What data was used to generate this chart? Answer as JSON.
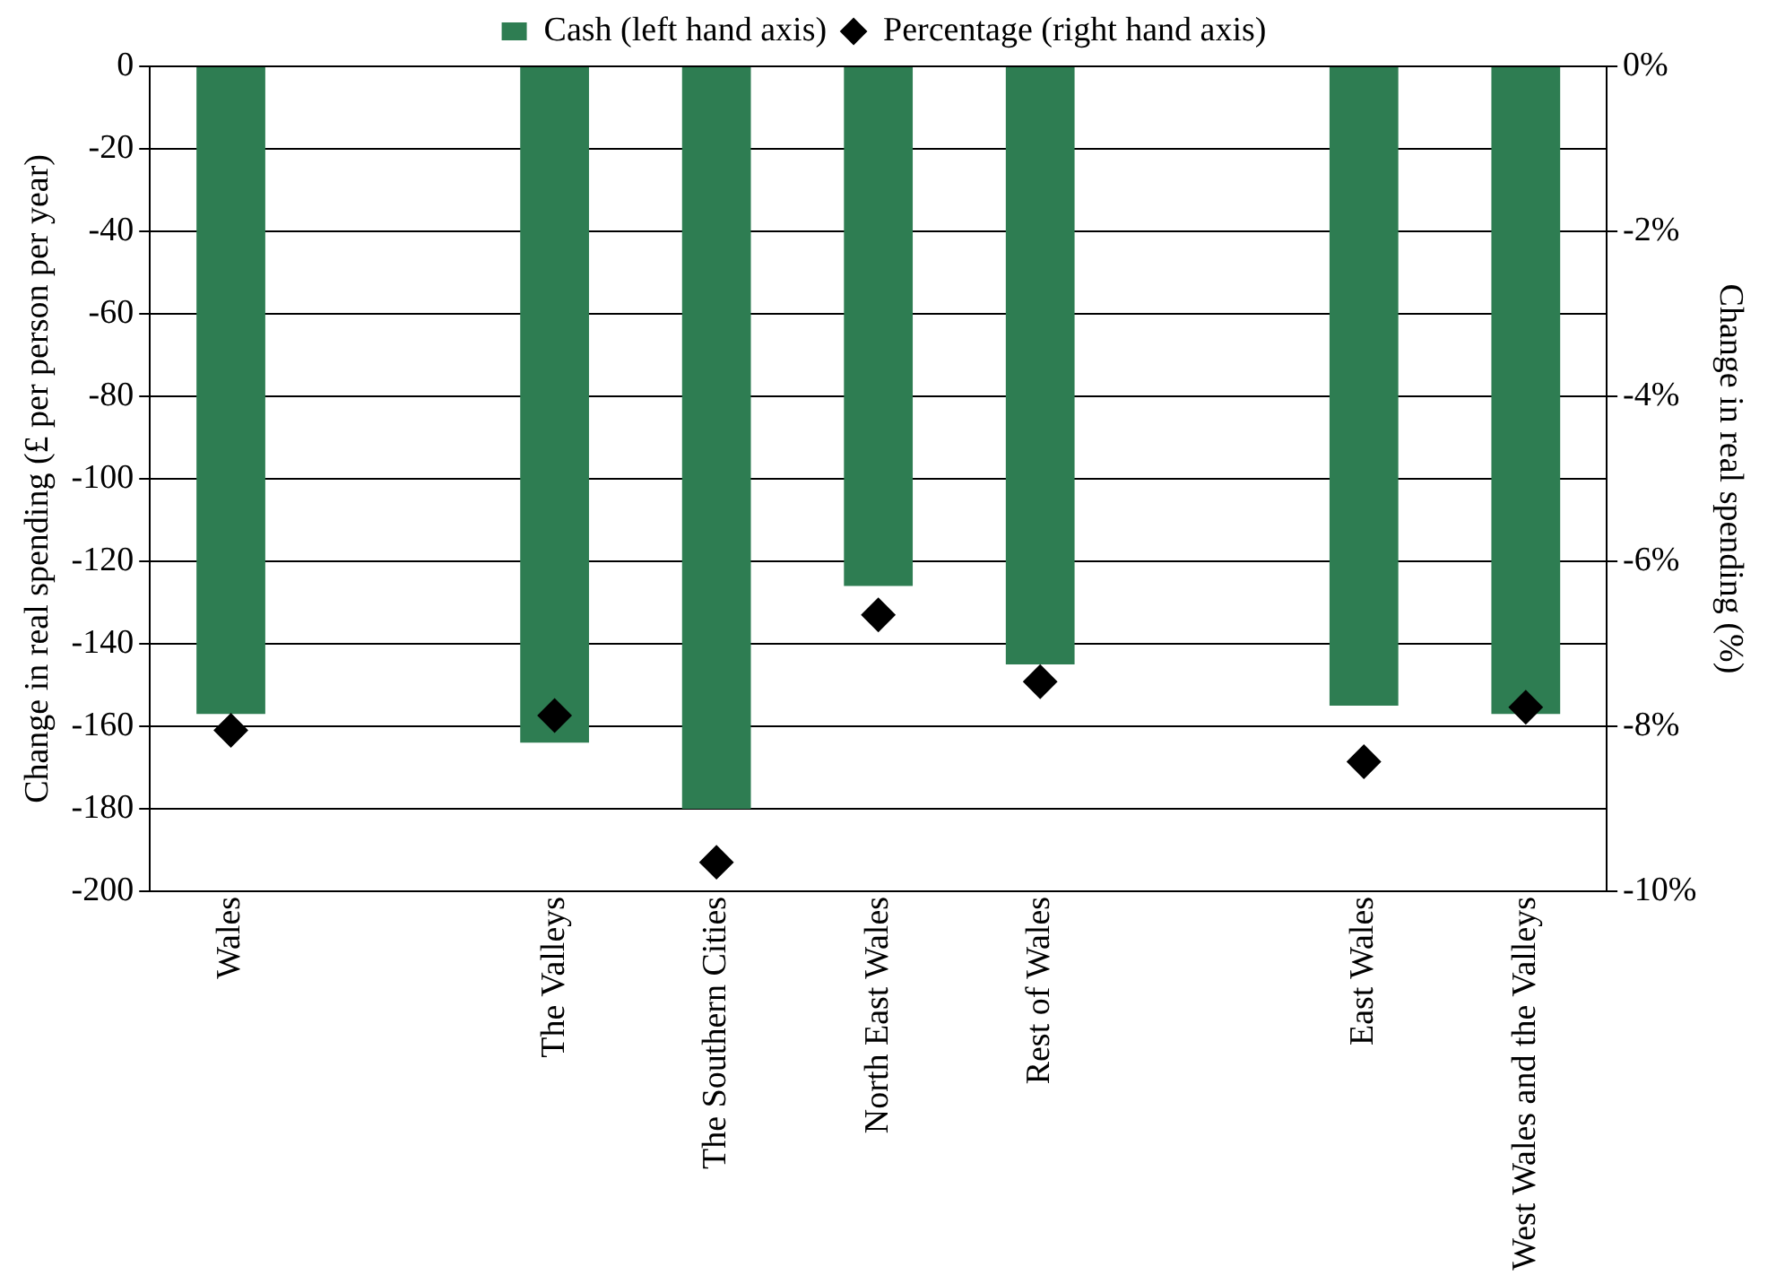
{
  "chart_data": {
    "type": "bar",
    "categories": [
      "Wales",
      null,
      "The Valleys",
      "The Southern Cities",
      "North East Wales",
      "Rest of Wales",
      null,
      "East Wales",
      "West Wales and the Valleys"
    ],
    "ylabel": "Change in real spending (£ per person per year)",
    "y2label": "Change in real spending (%)",
    "series": [
      {
        "name": "Cash (left hand axis)",
        "color": "#2e7d52",
        "values": [
          -157,
          null,
          -164,
          -180,
          -126,
          -145,
          null,
          -155,
          -157
        ]
      },
      {
        "name": "Percentage (right hand axis)",
        "type": "scatter",
        "axis": "y2",
        "color": "#000000",
        "marker": "diamond",
        "values": [
          -8.05,
          null,
          -7.87,
          -9.65,
          -6.65,
          -7.46,
          null,
          -8.43,
          -7.77
        ]
      }
    ],
    "ylim": [
      -200,
      0
    ],
    "yticks": [
      -200,
      -180,
      -160,
      -140,
      -120,
      -100,
      -80,
      -60,
      -40,
      -20,
      0
    ],
    "y2lim": [
      -10,
      0
    ],
    "y2ticks": [
      {
        "value": -10,
        "label": "-10%"
      },
      {
        "value": -8,
        "label": "-8%"
      },
      {
        "value": -6,
        "label": "-6%"
      },
      {
        "value": -4,
        "label": "-4%"
      },
      {
        "value": -2,
        "label": "-2%"
      },
      {
        "value": 0,
        "label": "0%"
      }
    ],
    "grid": "y",
    "legend": "top"
  }
}
